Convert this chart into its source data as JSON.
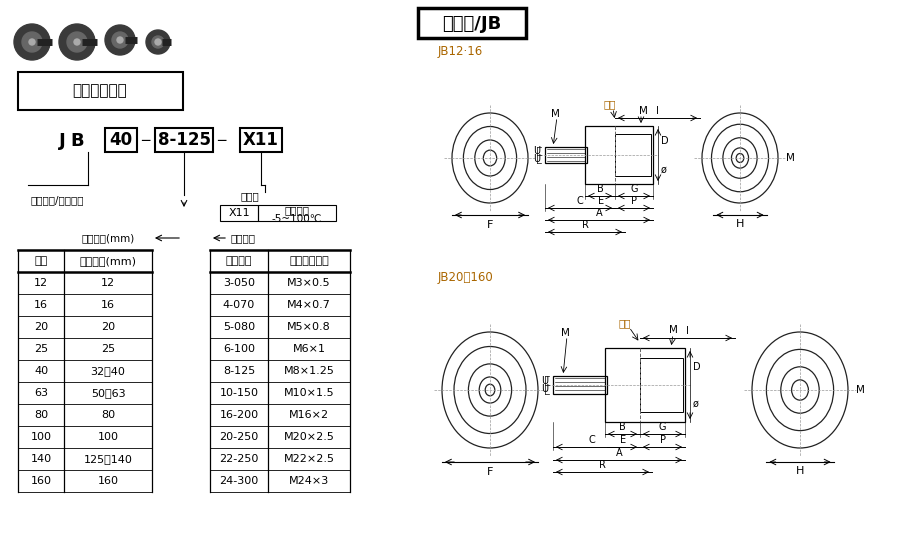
{
  "bg_color": "#ffffff",
  "section_title": "基本型/JB",
  "model_title": "型号表示方法",
  "jb12_label": "JB12·16",
  "jb20_label": "JB20～160",
  "size_table_header": [
    "记号",
    "适合缸径(mm)"
  ],
  "size_table_data": [
    [
      "12",
      "12"
    ],
    [
      "16",
      "16"
    ],
    [
      "20",
      "20"
    ],
    [
      "25",
      "25"
    ],
    [
      "40",
      "32、40"
    ],
    [
      "63",
      "50、63"
    ],
    [
      "80",
      "80"
    ],
    [
      "100",
      "100"
    ],
    [
      "140",
      "125、140"
    ],
    [
      "160",
      "160"
    ]
  ],
  "thread_table_header": [
    "螺纹称呼",
    "适合气缸螺纹"
  ],
  "thread_table_data": [
    [
      "3-050",
      "M3×0.5"
    ],
    [
      "4-070",
      "M4×0.7"
    ],
    [
      "5-080",
      "M5×0.8"
    ],
    [
      "6-100",
      "M6×1"
    ],
    [
      "8-125",
      "M8×1.25"
    ],
    [
      "10-150",
      "M10×1.5"
    ],
    [
      "16-200",
      "M16×2"
    ],
    [
      "20-250",
      "M20×2.5"
    ],
    [
      "22-250",
      "M22×2.5"
    ],
    [
      "24-300",
      "M24×3"
    ]
  ],
  "model_label_type": "薄型气缸/内螺纹型",
  "model_label_dia": "适合缸径(mm)",
  "model_label_thread": "螺纹称呼",
  "model_label_opt": "可选项",
  "opt_row": [
    "X11",
    "高温规格\n-5~100℃"
  ],
  "thread_section_label": "螺纹称呼",
  "dia_section_label": "适合缸径(mm)"
}
